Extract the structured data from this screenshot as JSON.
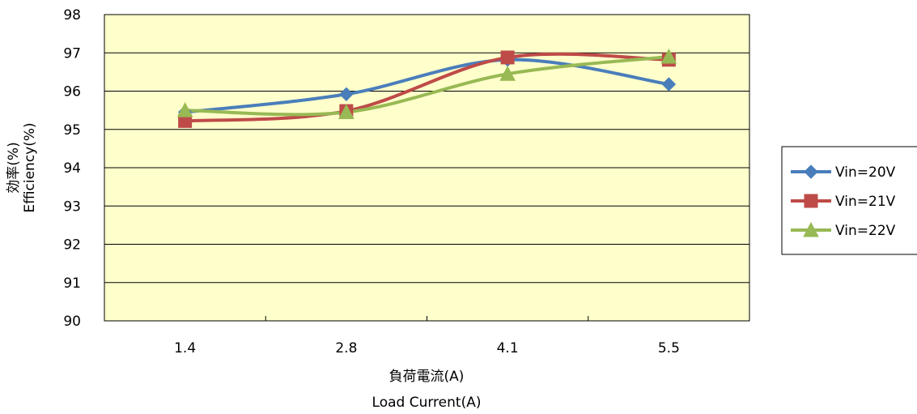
{
  "chart_data": {
    "type": "line",
    "categories": [
      "1.4",
      "2.8",
      "4.1",
      "5.5"
    ],
    "series": [
      {
        "name": "Vin=20V",
        "values": [
          95.45,
          95.92,
          96.82,
          96.18
        ],
        "color": "#4a7ebb",
        "marker": "diamond"
      },
      {
        "name": "Vin=21V",
        "values": [
          95.22,
          95.48,
          96.88,
          96.82
        ],
        "color": "#be4b48",
        "marker": "square"
      },
      {
        "name": "Vin=22V",
        "values": [
          95.5,
          95.45,
          96.45,
          96.9
        ],
        "color": "#98b954",
        "marker": "triangle"
      }
    ],
    "ylim": [
      90,
      98
    ],
    "yticks": [
      "90",
      "91",
      "92",
      "93",
      "94",
      "95",
      "96",
      "97",
      "98"
    ],
    "ylabel_line1": "効率(%)",
    "ylabel_line2": "Efficiency(%)",
    "xlabel_line1": "負荷電流(A)",
    "xlabel_line2": "Load Current(A)",
    "grid": true,
    "legend": "right",
    "plot_bg": "#ffffcc",
    "smooth": true
  }
}
